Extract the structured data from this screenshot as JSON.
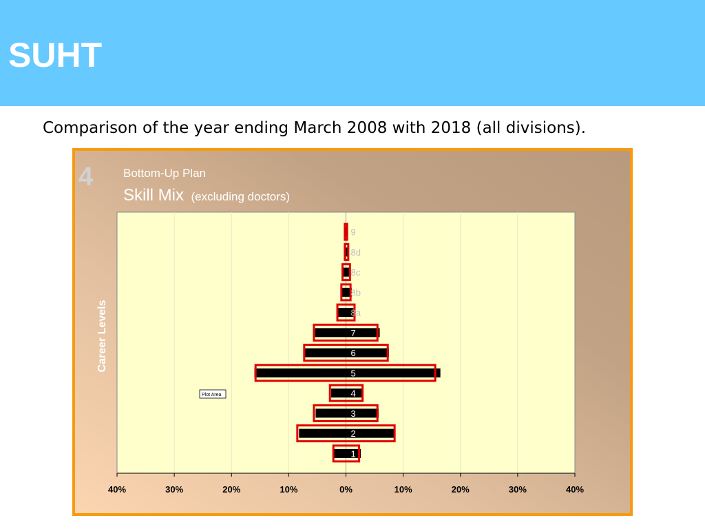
{
  "header": {
    "title": "SUHT"
  },
  "subtitle": "Comparison of the year ending March 2008 with 2018 (all divisions).",
  "colors": {
    "header_bg": "#66c9ff",
    "panel_border": "#f79a10",
    "plot_bg": "#ffffcc",
    "bar_2008": "#000000",
    "outline_2018": "#e00000"
  },
  "slide": {
    "number": "4",
    "plan_label": "Bottom-Up Plan",
    "title_main": "Skill Mix",
    "title_sub": "(excluding doctors)",
    "y_axis_label": "Career Levels",
    "plot_area_tooltip": "Plot Area"
  },
  "chart_data": {
    "type": "bar",
    "orientation": "horizontal",
    "style": "population pyramid",
    "title": "Skill Mix (excluding doctors)",
    "ylabel": "Career Levels",
    "xlim": [
      -40,
      40
    ],
    "x_tick_values": [
      -40,
      -30,
      -20,
      -10,
      0,
      10,
      20,
      30,
      40
    ],
    "x_tick_labels": [
      "40%",
      "30%",
      "20%",
      "10%",
      "0%",
      "10%",
      "20%",
      "30%",
      "40%"
    ],
    "categories": [
      "1",
      "2",
      "3",
      "4",
      "5",
      "6",
      "7",
      "8a",
      "8b",
      "8c",
      "8d",
      "9"
    ],
    "grid": true,
    "series": [
      {
        "style": "solid black bars",
        "left": [
          2.2,
          8.2,
          5.3,
          2.6,
          16.0,
          7.3,
          5.4,
          1.4,
          0.9,
          0.5,
          0.3,
          0.1
        ],
        "right": [
          2.6,
          8.4,
          5.7,
          3.0,
          16.5,
          7.5,
          5.9,
          1.3,
          1.0,
          0.7,
          0.5,
          0.3
        ]
      },
      {
        "style": "red outline bars",
        "left": [
          2.2,
          8.5,
          5.6,
          2.8,
          15.8,
          7.3,
          5.6,
          1.5,
          0.8,
          0.6,
          0.2,
          0.2
        ],
        "right": [
          2.3,
          8.5,
          5.5,
          2.9,
          15.6,
          7.3,
          5.5,
          1.5,
          0.8,
          0.7,
          0.4,
          0.2
        ]
      }
    ]
  }
}
